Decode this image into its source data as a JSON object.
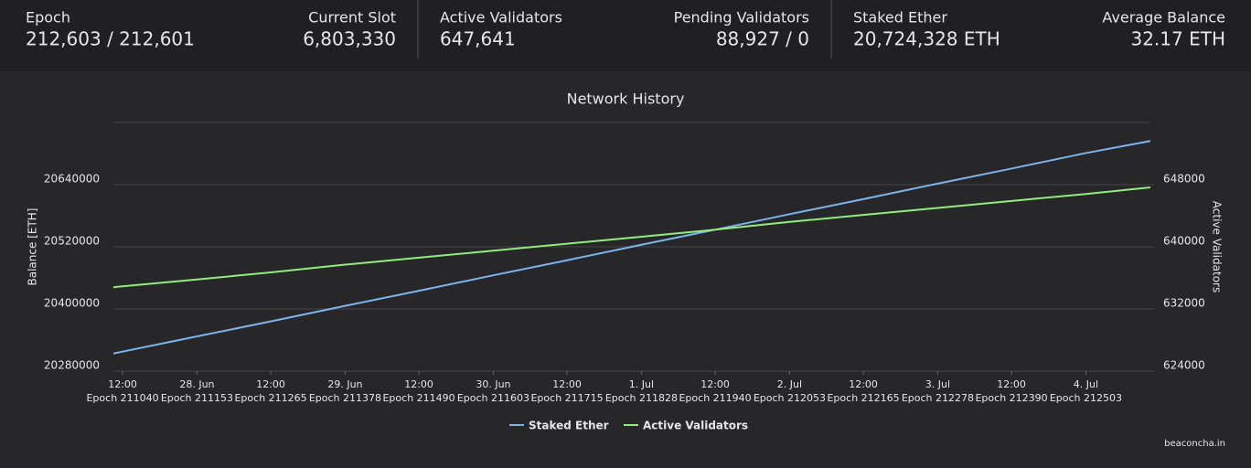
{
  "stats": [
    {
      "label": "Epoch",
      "value": "212,603 / 212,601"
    },
    {
      "label": "Current Slot",
      "value": "6,803,330"
    },
    {
      "label": "Active Validators",
      "value": "647,641"
    },
    {
      "label": "Pending Validators",
      "value": "88,927 / 0"
    },
    {
      "label": "Staked Ether",
      "value": "20,724,328 ETH"
    },
    {
      "label": "Average Balance",
      "value": "32.17 ETH"
    }
  ],
  "chart_data": {
    "type": "line",
    "title": "Network History",
    "y_label": "Balance [ETH]",
    "y2_label": "Active Validators",
    "x": [
      211026,
      211153,
      211265,
      211378,
      211490,
      211603,
      211715,
      211828,
      211940,
      212053,
      212165,
      212278,
      212390,
      212503,
      212601
    ],
    "series": [
      {
        "name": "Staked Ether",
        "color": "#7cb5ec",
        "values": [
          20314000,
          20347000,
          20376000,
          20406000,
          20435000,
          20465000,
          20494000,
          20524000,
          20553000,
          20583000,
          20612000,
          20642000,
          20671000,
          20701000,
          20724328
        ]
      },
      {
        "name": "Active Validators",
        "color": "#90ed7d",
        "axis": "y2",
        "values": [
          634800,
          635800,
          636700,
          637700,
          638600,
          639500,
          640400,
          641300,
          642200,
          643200,
          644100,
          645000,
          645900,
          646800,
          647641
        ]
      }
    ],
    "xlim": [
      211026,
      212601
    ],
    "xticks": [
      {
        "value": 211040,
        "label": "12:00",
        "epoch_label": "Epoch 211040"
      },
      {
        "value": 211153,
        "label": "28. Jun",
        "epoch_label": "Epoch 211153"
      },
      {
        "value": 211265,
        "label": "12:00",
        "epoch_label": "Epoch 211265"
      },
      {
        "value": 211378,
        "label": "29. Jun",
        "epoch_label": "Epoch 211378"
      },
      {
        "value": 211490,
        "label": "12:00",
        "epoch_label": "Epoch 211490"
      },
      {
        "value": 211603,
        "label": "30. Jun",
        "epoch_label": "Epoch 211603"
      },
      {
        "value": 211715,
        "label": "12:00",
        "epoch_label": "Epoch 211715"
      },
      {
        "value": 211828,
        "label": "1. Jul",
        "epoch_label": "Epoch 211828"
      },
      {
        "value": 211940,
        "label": "12:00",
        "epoch_label": "Epoch 211940"
      },
      {
        "value": 212053,
        "label": "2. Jul",
        "epoch_label": "Epoch 212053"
      },
      {
        "value": 212165,
        "label": "12:00",
        "epoch_label": "Epoch 212165"
      },
      {
        "value": 212278,
        "label": "3. Jul",
        "epoch_label": "Epoch 212278"
      },
      {
        "value": 212390,
        "label": "12:00",
        "epoch_label": "Epoch 212390"
      },
      {
        "value": 212503,
        "label": "4. Jul",
        "epoch_label": "Epoch 212503"
      }
    ],
    "ylim": [
      20280000,
      20760000
    ],
    "yticks": [
      20280000,
      20400000,
      20520000,
      20640000
    ],
    "y2lim": [
      624000,
      656000
    ],
    "y2ticks": [
      624000,
      632000,
      640000,
      648000
    ],
    "grid": true,
    "legend": "bottom"
  },
  "footer": "beaconcha.in"
}
